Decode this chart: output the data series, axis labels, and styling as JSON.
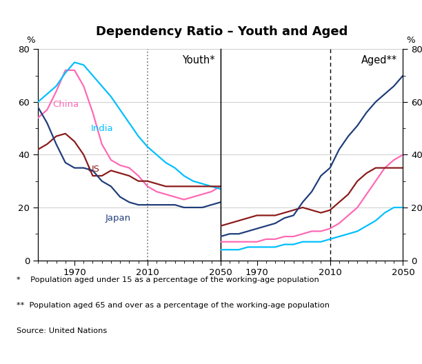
{
  "title": "Dependency Ratio – Youth and Aged",
  "footnote1": "*    Population aged under 15 as a percentage of the working-age population",
  "footnote2": "**  Population aged 65 and over as a percentage of the working-age population",
  "footnote3": "Source: United Nations",
  "ylabel_left": "%",
  "ylabel_right": "%",
  "ylim": [
    0,
    80
  ],
  "yticks": [
    0,
    20,
    40,
    60,
    80
  ],
  "panel1_label": "Youth*",
  "panel2_label": "Aged**",
  "youth_years": [
    1950,
    1955,
    1960,
    1965,
    1970,
    1975,
    1980,
    1985,
    1990,
    1995,
    2000,
    2005,
    2010,
    2015,
    2020,
    2025,
    2030,
    2035,
    2040,
    2045,
    2050
  ],
  "youth_china": [
    54,
    57,
    64,
    72,
    72,
    66,
    56,
    44,
    38,
    36,
    35,
    32,
    28,
    26,
    25,
    24,
    23,
    24,
    25,
    26,
    28
  ],
  "youth_india": [
    60,
    63,
    66,
    71,
    75,
    74,
    70,
    66,
    62,
    57,
    52,
    47,
    43,
    40,
    37,
    35,
    32,
    30,
    29,
    28,
    27
  ],
  "youth_us": [
    42,
    44,
    47,
    48,
    45,
    40,
    32,
    32,
    34,
    33,
    32,
    30,
    30,
    29,
    28,
    28,
    28,
    28,
    28,
    28,
    28
  ],
  "youth_japan": [
    58,
    52,
    44,
    37,
    35,
    35,
    34,
    30,
    28,
    24,
    22,
    21,
    21,
    21,
    21,
    21,
    20,
    20,
    20,
    21,
    22
  ],
  "aged_years": [
    1950,
    1955,
    1960,
    1965,
    1970,
    1975,
    1980,
    1985,
    1990,
    1995,
    2000,
    2005,
    2010,
    2015,
    2020,
    2025,
    2030,
    2035,
    2040,
    2045,
    2050
  ],
  "aged_china": [
    7,
    7,
    7,
    7,
    7,
    8,
    8,
    9,
    9,
    10,
    11,
    11,
    12,
    14,
    17,
    20,
    25,
    30,
    35,
    38,
    40
  ],
  "aged_india": [
    4,
    4,
    4,
    5,
    5,
    5,
    5,
    6,
    6,
    7,
    7,
    7,
    8,
    9,
    10,
    11,
    13,
    15,
    18,
    20,
    20
  ],
  "aged_us": [
    13,
    14,
    15,
    16,
    17,
    17,
    17,
    18,
    19,
    20,
    19,
    18,
    19,
    22,
    25,
    30,
    33,
    35,
    35,
    35,
    35
  ],
  "aged_japan": [
    9,
    10,
    10,
    11,
    12,
    13,
    14,
    16,
    17,
    22,
    26,
    32,
    35,
    42,
    47,
    51,
    56,
    60,
    63,
    66,
    70
  ],
  "color_china": "#ff69b4",
  "color_india": "#00bfff",
  "color_us": "#8b1a1a",
  "color_japan": "#1f3d7a",
  "xmin": 1950,
  "xmax": 2050,
  "xticks": [
    1970,
    2010,
    2050
  ]
}
